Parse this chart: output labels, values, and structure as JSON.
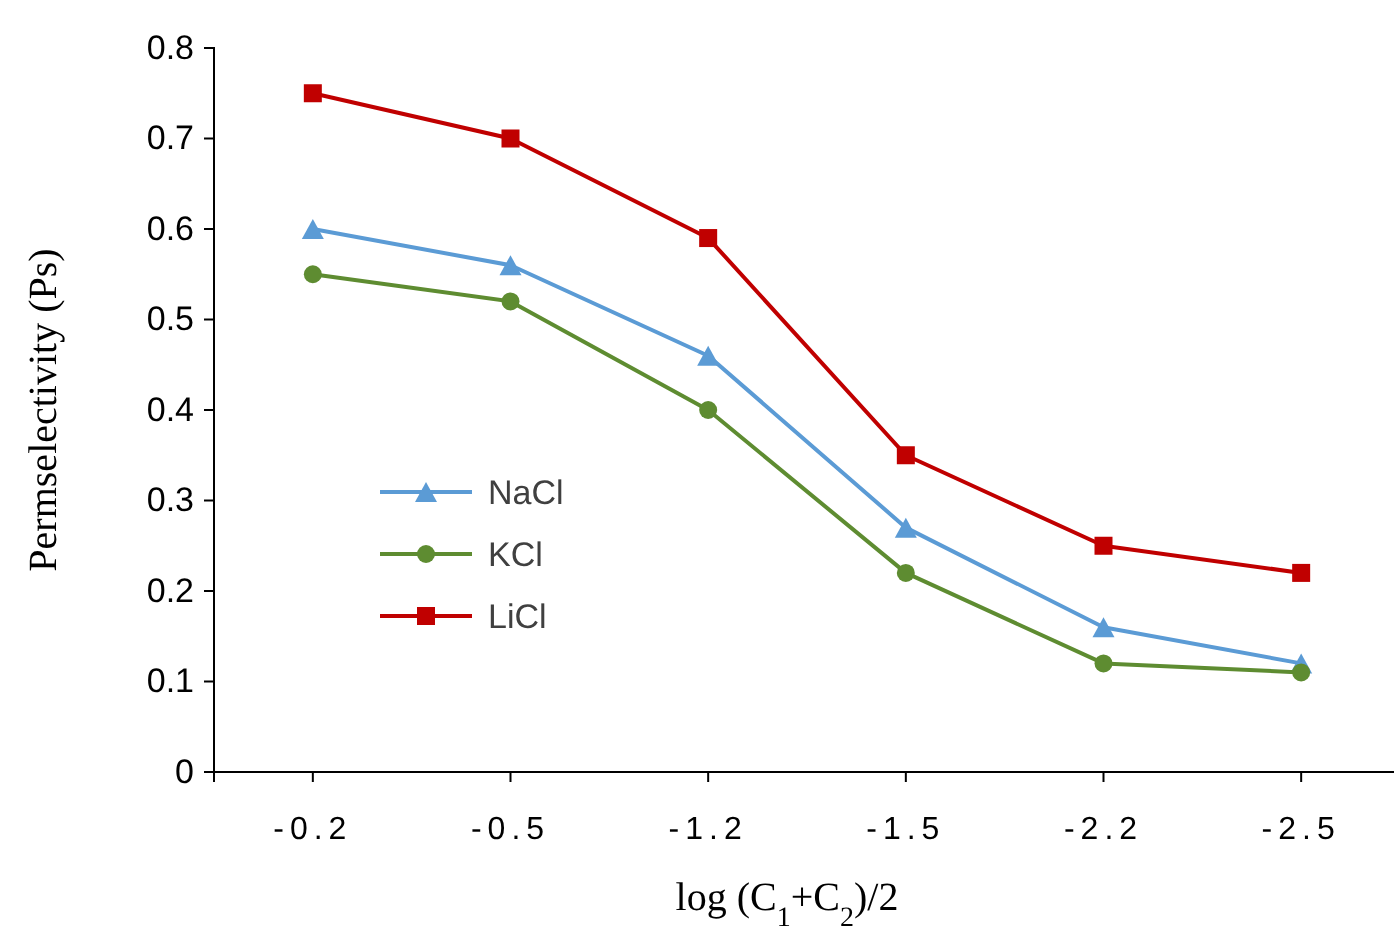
{
  "chart_data": {
    "type": "line",
    "xlabel": "log (C$_{1}$+C$_{2}$)/2",
    "ylabel": "Permselectivity (Ps)",
    "categories": [
      "-0.2",
      "-0.5",
      "-1.2",
      "-1.5",
      "-2.2",
      "-2.5"
    ],
    "series": [
      {
        "name": "NaCl",
        "color": "#5b9bd5",
        "marker": "triangle",
        "values": [
          0.6,
          0.56,
          0.46,
          0.27,
          0.16,
          0.12
        ]
      },
      {
        "name": "KCl",
        "color": "#5e8c31",
        "marker": "circle",
        "values": [
          0.55,
          0.52,
          0.4,
          0.22,
          0.12,
          0.11
        ]
      },
      {
        "name": "LiCl",
        "color": "#c00000",
        "marker": "square",
        "values": [
          0.75,
          0.7,
          0.59,
          0.35,
          0.25,
          0.22
        ]
      }
    ],
    "ylim": [
      0,
      0.8
    ],
    "yticks": [
      0,
      0.1,
      0.2,
      0.3,
      0.4,
      0.5,
      0.6,
      0.7,
      0.8
    ],
    "legend": "left",
    "grid": false
  }
}
